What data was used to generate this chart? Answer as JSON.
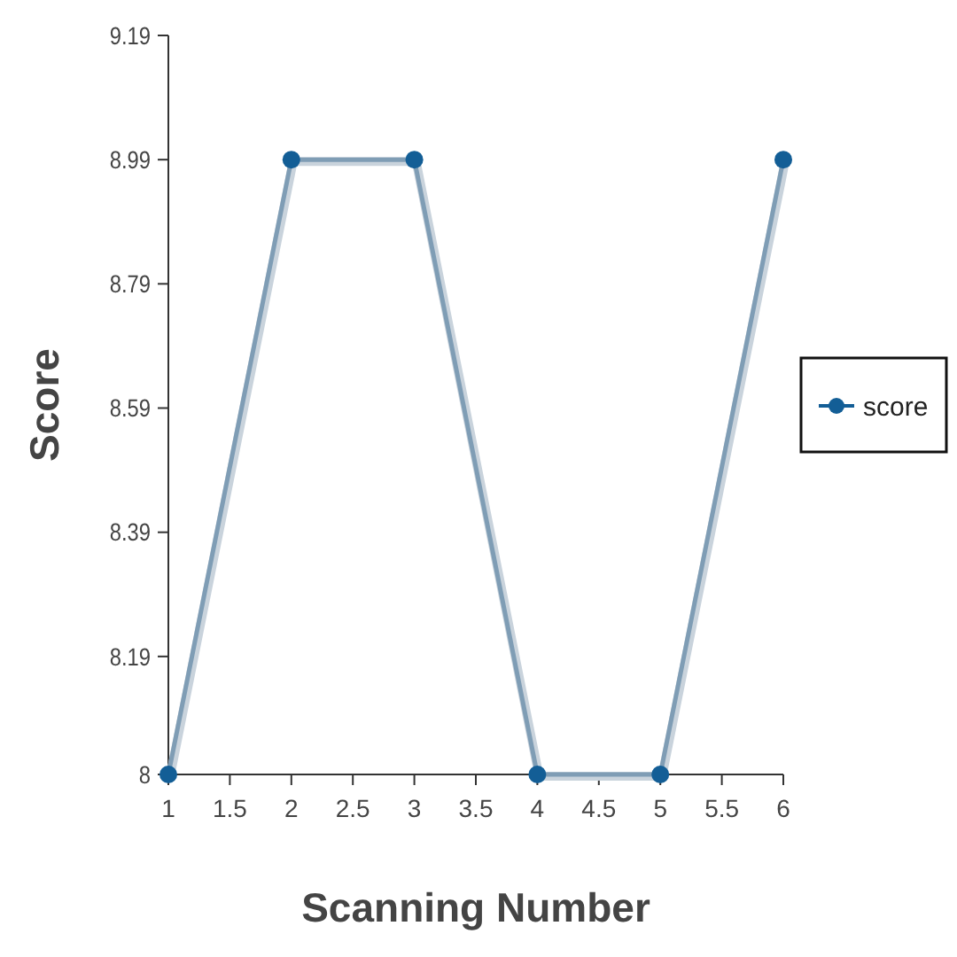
{
  "chart_data": {
    "type": "line",
    "xlabel": "Scanning Number",
    "ylabel": "Score",
    "x": [
      1,
      2,
      3,
      4,
      5,
      6
    ],
    "series": [
      {
        "name": "score",
        "color": "#7f9db5",
        "values": [
          8,
          8.99,
          8.99,
          8,
          8,
          8.99
        ]
      }
    ],
    "xlim": [
      1,
      6
    ],
    "xticks": [
      1,
      1.5,
      2,
      2.5,
      3,
      3.5,
      4,
      4.5,
      5,
      5.5,
      6
    ],
    "ylim": [
      8,
      9.19
    ],
    "yticks": [
      8,
      8.19,
      8.39,
      8.59,
      8.79,
      8.99,
      9.19
    ],
    "marker": "circle",
    "line_style": "solid",
    "grid": false,
    "legend": "right"
  }
}
